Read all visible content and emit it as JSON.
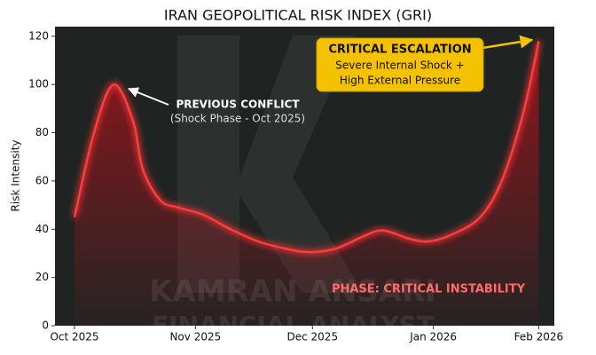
{
  "chart_data": {
    "type": "line",
    "title": "IRAN GEOPOLITICAL RISK INDEX (GRI)",
    "ylabel": "Risk Intensity",
    "x": [
      0,
      5,
      10,
      15,
      17.5,
      22,
      26.6,
      33,
      40,
      47,
      54,
      60,
      67,
      74,
      79,
      86,
      91,
      97,
      104,
      109.5,
      115,
      119
    ],
    "series": [
      {
        "name": "GRI",
        "color": "#ff3b3b",
        "values": [
          45,
          80,
          100,
          85,
          65,
          52,
          49,
          46,
          40,
          35,
          32,
          30.5,
          32,
          37,
          39.5,
          36,
          35,
          38,
          45,
          60,
          88,
          118
        ]
      }
    ],
    "xlim": [
      -5,
      123
    ],
    "xticks": [
      {
        "value": 0,
        "label": "Oct 2025"
      },
      {
        "value": 31,
        "label": "Nov 2025"
      },
      {
        "value": 61,
        "label": "Dec 2025"
      },
      {
        "value": 92,
        "label": "Jan 2026"
      },
      {
        "value": 119,
        "label": "Feb 2026"
      }
    ],
    "ylim": [
      0,
      124
    ],
    "yticks": [
      0,
      20,
      40,
      60,
      80,
      100,
      120
    ],
    "annotations": {
      "previous_conflict": "PREVIOUS CONFLICT",
      "previous_conflict_sub": "(Shock Phase - Oct 2025)",
      "critical_escalation": "CRITICAL ESCALATION",
      "critical_line1": "Severe Internal Shock +",
      "critical_line2": "High External Pressure",
      "phase": "PHASE: CRITICAL INSTABILITY",
      "watermark1": "KAMRAN ANSARI",
      "watermark2": "FINANCIAL ANALYST"
    }
  }
}
